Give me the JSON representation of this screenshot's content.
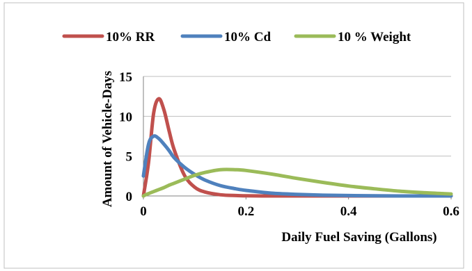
{
  "chart_data": {
    "type": "line",
    "title": "",
    "xlabel": "Daily Fuel Saving (Gallons)",
    "ylabel": "Amount of Vehicle-Days",
    "xlim": [
      0,
      0.6
    ],
    "ylim": [
      0,
      15
    ],
    "x_ticks": [
      "0",
      "0.2",
      "0.4",
      "0.6"
    ],
    "y_ticks": [
      "0",
      "5",
      "10",
      "15"
    ],
    "legend_position": "top",
    "grid": true,
    "x": [
      0.0,
      0.01,
      0.02,
      0.03,
      0.04,
      0.05,
      0.06,
      0.08,
      0.1,
      0.12,
      0.15,
      0.18,
      0.2,
      0.25,
      0.3,
      0.35,
      0.4,
      0.45,
      0.5,
      0.55,
      0.6
    ],
    "series": [
      {
        "name": "10% RR",
        "color": "#c0504d",
        "values": [
          0.0,
          4.2,
          10.4,
          12.2,
          10.8,
          8.2,
          5.8,
          2.6,
          1.1,
          0.5,
          0.15,
          0.05,
          0.02,
          0.0,
          0.0,
          0.0,
          0.0,
          0.0,
          0.0,
          0.0,
          0.0
        ]
      },
      {
        "name": "10% Cd",
        "color": "#4f81bd",
        "values": [
          2.5,
          6.5,
          7.5,
          7.2,
          6.5,
          5.7,
          4.8,
          3.6,
          2.7,
          2.0,
          1.3,
          0.9,
          0.7,
          0.35,
          0.2,
          0.1,
          0.05,
          0.02,
          0.0,
          0.0,
          0.0
        ]
      },
      {
        "name": "10 % Weight",
        "color": "#9bbb59",
        "values": [
          0.0,
          0.3,
          0.55,
          0.8,
          1.05,
          1.35,
          1.6,
          2.1,
          2.6,
          2.95,
          3.3,
          3.3,
          3.2,
          2.75,
          2.2,
          1.7,
          1.25,
          0.9,
          0.6,
          0.4,
          0.25
        ]
      }
    ]
  }
}
